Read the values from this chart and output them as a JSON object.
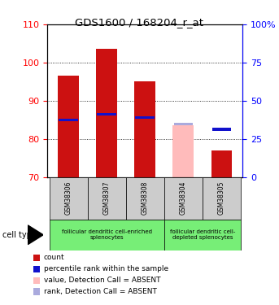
{
  "title": "GDS1600 / 168204_r_at",
  "samples": [
    "GSM38306",
    "GSM38307",
    "GSM38308",
    "GSM38304",
    "GSM38305"
  ],
  "bar_bottoms": [
    70,
    70,
    70,
    70,
    70
  ],
  "bar_tops_red": [
    96.5,
    103.5,
    95.0,
    70,
    77.0
  ],
  "bar_tops_pink": [
    70,
    70,
    70,
    83.5,
    70
  ],
  "blue_y": [
    85.0,
    86.5,
    85.5,
    70,
    82.5
  ],
  "blue_absent_y": [
    70,
    70,
    70,
    83.8,
    70
  ],
  "blue_square_absent": [
    false,
    false,
    false,
    true,
    false
  ],
  "ylim_left": [
    70,
    110
  ],
  "yticks_left": [
    70,
    80,
    90,
    100,
    110
  ],
  "yticks_right": [
    0,
    25,
    50,
    75,
    100
  ],
  "yticklabels_right": [
    "0",
    "25",
    "50",
    "75",
    "100%"
  ],
  "bar_width": 0.55,
  "bar_color_red": "#cc1111",
  "bar_color_pink": "#ffbbbb",
  "blue_color": "#1111cc",
  "blue_absent_color": "#aaaadd",
  "group1_label": "follicular dendritic cell-enriched\nsplenocytes",
  "group2_label": "follicular dendritic cell-\ndepleted splenocytes",
  "group1_indices": [
    0,
    1,
    2
  ],
  "group2_indices": [
    3,
    4
  ],
  "cell_type_label": "cell type",
  "legend_items": [
    {
      "color": "#cc1111",
      "label": "count"
    },
    {
      "color": "#1111cc",
      "label": "percentile rank within the sample"
    },
    {
      "color": "#ffbbbb",
      "label": "value, Detection Call = ABSENT"
    },
    {
      "color": "#aaaadd",
      "label": "rank, Detection Call = ABSENT"
    }
  ],
  "bg_color_plot": "#ffffff",
  "bg_color_sample_box": "#cccccc",
  "bg_color_group": "#77ee77"
}
